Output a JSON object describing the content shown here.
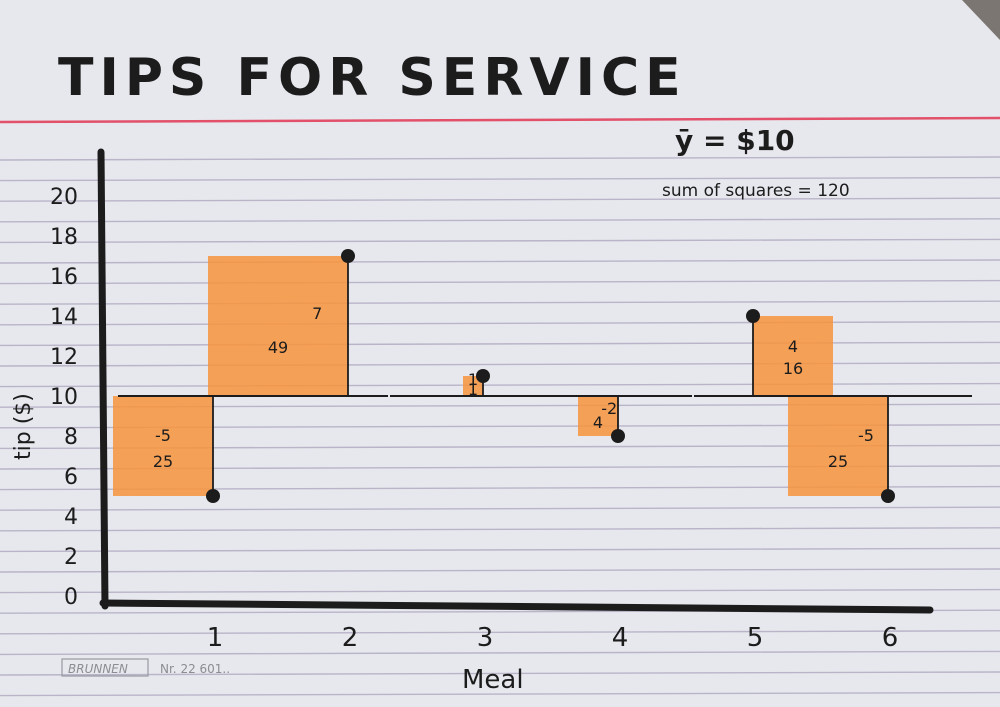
{
  "card": {
    "title": "TIPS FOR SERVICE",
    "mean_label": "ȳ = $10",
    "ss_label": "sum of squares = 120",
    "brand": "BRUNNEN",
    "catalog_no": "Nr. 22 601.."
  },
  "colors": {
    "paper": "#e7e8ee",
    "rule_line": "#b9b4c8",
    "red_rule": "#e2506a",
    "ink": "#1c1c1c",
    "highlighter": "#f7933c"
  },
  "chart_data": {
    "type": "scatter",
    "title": "TIPS FOR SERVICE",
    "xlabel": "Meal",
    "ylabel": "tip ($)",
    "categories": [
      "1",
      "2",
      "3",
      "4",
      "5",
      "6"
    ],
    "x": [
      1,
      2,
      3,
      4,
      5,
      6
    ],
    "y_ticks": [
      0,
      2,
      4,
      6,
      8,
      10,
      12,
      14,
      16,
      18,
      20
    ],
    "ylim": [
      0,
      20
    ],
    "mean": 10,
    "sum_of_squares": 120,
    "series": [
      {
        "values": [
          5,
          17,
          11,
          8,
          14,
          5
        ],
        "residuals": [
          "-5",
          "7",
          "1",
          "-2",
          "4",
          "-5"
        ],
        "squared_residuals": [
          "25",
          "49",
          "1",
          "4",
          "16",
          "25"
        ]
      }
    ],
    "residual_labels": [
      "-5",
      "7",
      "1",
      "-2",
      "4",
      "-5"
    ],
    "square_labels": [
      "25",
      "49",
      "1",
      "4",
      "16",
      "25"
    ],
    "grid": true
  }
}
